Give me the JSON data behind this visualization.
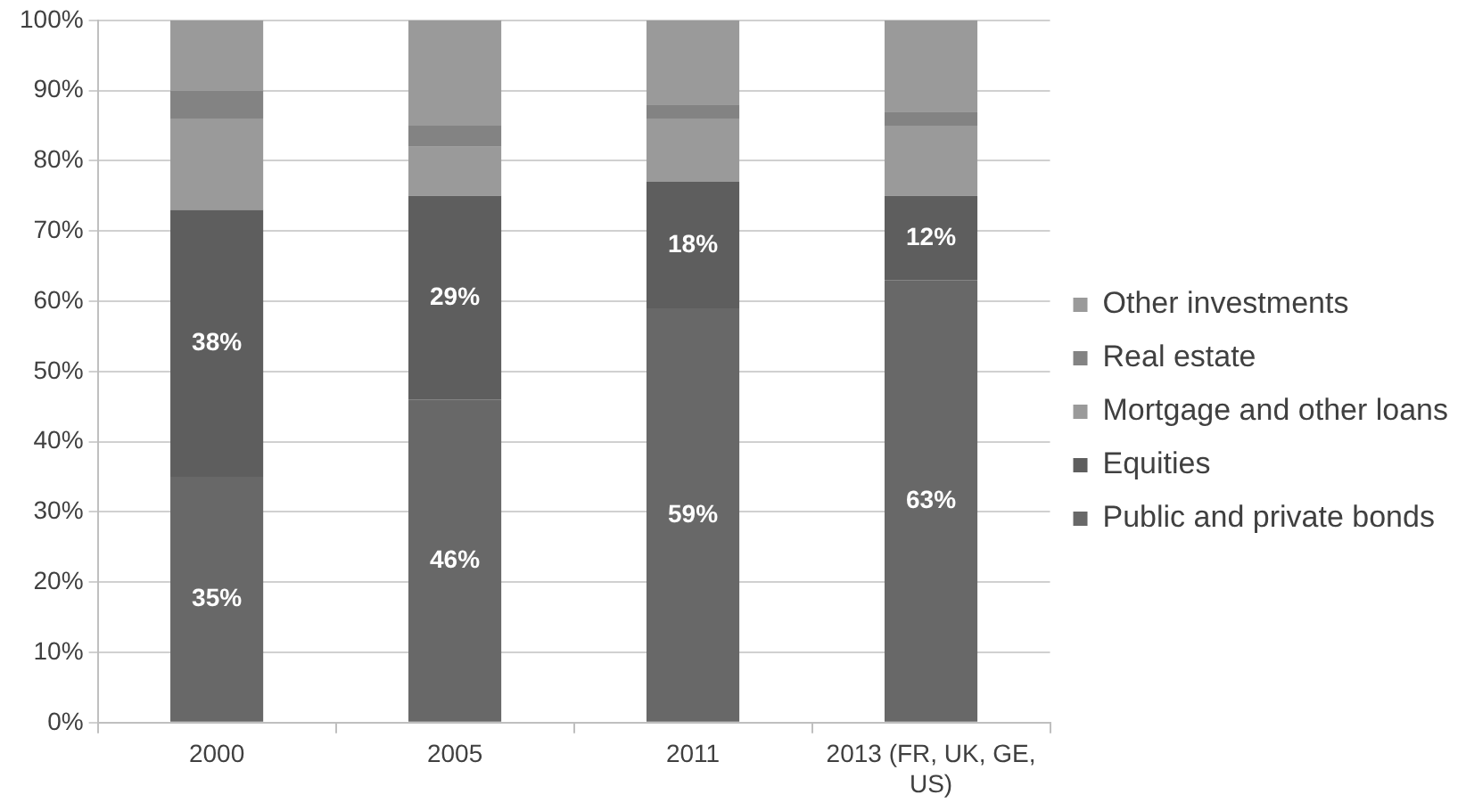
{
  "chart_data": {
    "type": "bar",
    "stacked": true,
    "categories": [
      "2000",
      "2005",
      "2011",
      "2013 (FR, UK, GE, US)"
    ],
    "series": [
      {
        "name": "Public and private bonds",
        "color": "#686868",
        "values": [
          35,
          46,
          59,
          63
        ],
        "value_labels": [
          "35%",
          "46%",
          "59%",
          "63%"
        ]
      },
      {
        "name": "Equities",
        "color": "#5e5e5e",
        "values": [
          38,
          29,
          18,
          12
        ],
        "value_labels": [
          "38%",
          "29%",
          "18%",
          "12%"
        ]
      },
      {
        "name": "Mortgage and other loans",
        "color": "#9a9a9a",
        "values": [
          13,
          7,
          9,
          10
        ]
      },
      {
        "name": "Real estate",
        "color": "#838383",
        "values": [
          4,
          3,
          2,
          2
        ]
      },
      {
        "name": "Other investments",
        "color": "#9a9a9a",
        "values": [
          10,
          15,
          12,
          13
        ]
      }
    ],
    "ylim": [
      0,
      100
    ],
    "yticks": [
      {
        "value": 0,
        "label": "0%"
      },
      {
        "value": 10,
        "label": "10%"
      },
      {
        "value": 20,
        "label": "20%"
      },
      {
        "value": 30,
        "label": "30%"
      },
      {
        "value": 40,
        "label": "40%"
      },
      {
        "value": 50,
        "label": "50%"
      },
      {
        "value": 60,
        "label": "60%"
      },
      {
        "value": 70,
        "label": "70%"
      },
      {
        "value": 80,
        "label": "80%"
      },
      {
        "value": 90,
        "label": "90%"
      },
      {
        "value": 100,
        "label": "100%"
      }
    ],
    "grid": "y",
    "legend": "right"
  }
}
